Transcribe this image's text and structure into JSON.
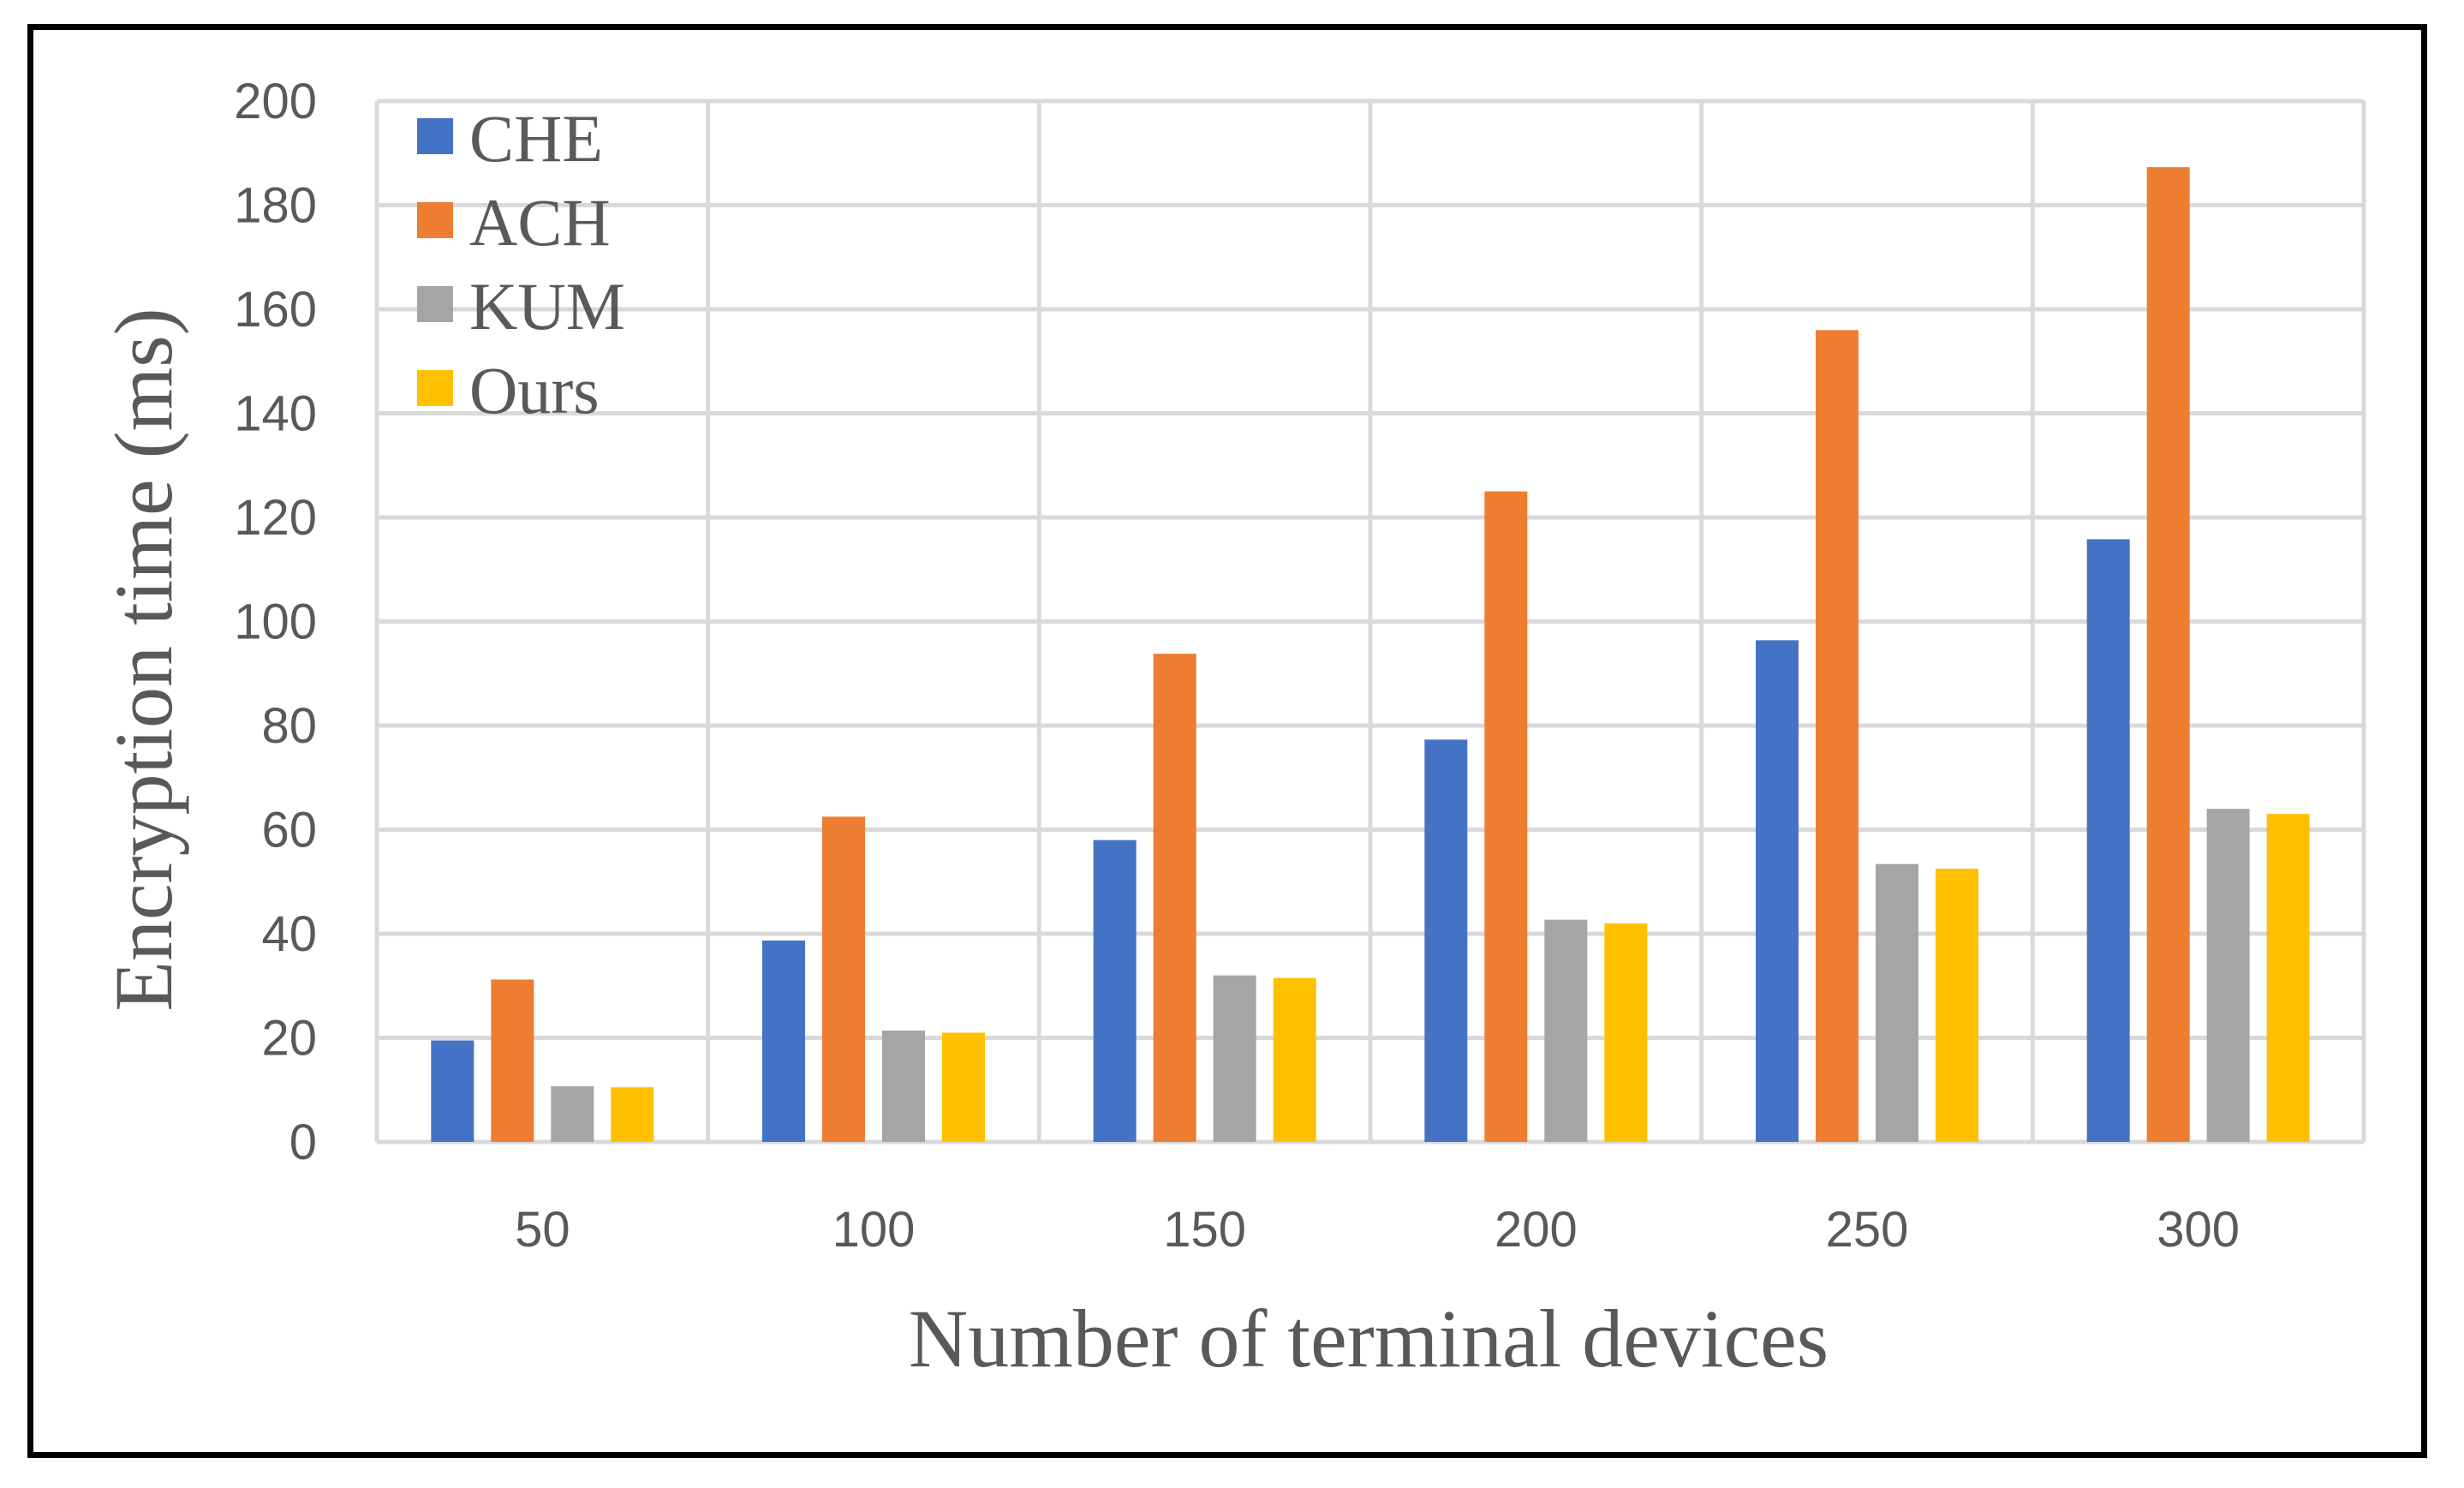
{
  "chart_data": {
    "type": "bar",
    "categories": [
      "50",
      "100",
      "150",
      "200",
      "250",
      "300"
    ],
    "series": [
      {
        "name": "CHE",
        "color": "#4472C4",
        "values": [
          19.5,
          38.7,
          58.0,
          77.3,
          96.4,
          115.8
        ]
      },
      {
        "name": "ACH",
        "color": "#ED7D31",
        "values": [
          31.2,
          62.5,
          93.8,
          125.0,
          156.0,
          187.3
        ]
      },
      {
        "name": "KUM",
        "color": "#A5A5A5",
        "values": [
          10.7,
          21.4,
          32.0,
          42.7,
          53.4,
          64.0
        ]
      },
      {
        "name": "Ours",
        "color": "#FFC000",
        "values": [
          10.5,
          21.0,
          31.5,
          42.0,
          52.5,
          63.0
        ]
      }
    ],
    "xlabel": "Number of terminal devices",
    "ylabel": "Encryption time (ms)",
    "ylim": [
      0,
      200
    ],
    "yticks": [
      0,
      20,
      40,
      60,
      80,
      100,
      120,
      140,
      160,
      180,
      200
    ],
    "grid": true,
    "legend_position": "top-left"
  }
}
